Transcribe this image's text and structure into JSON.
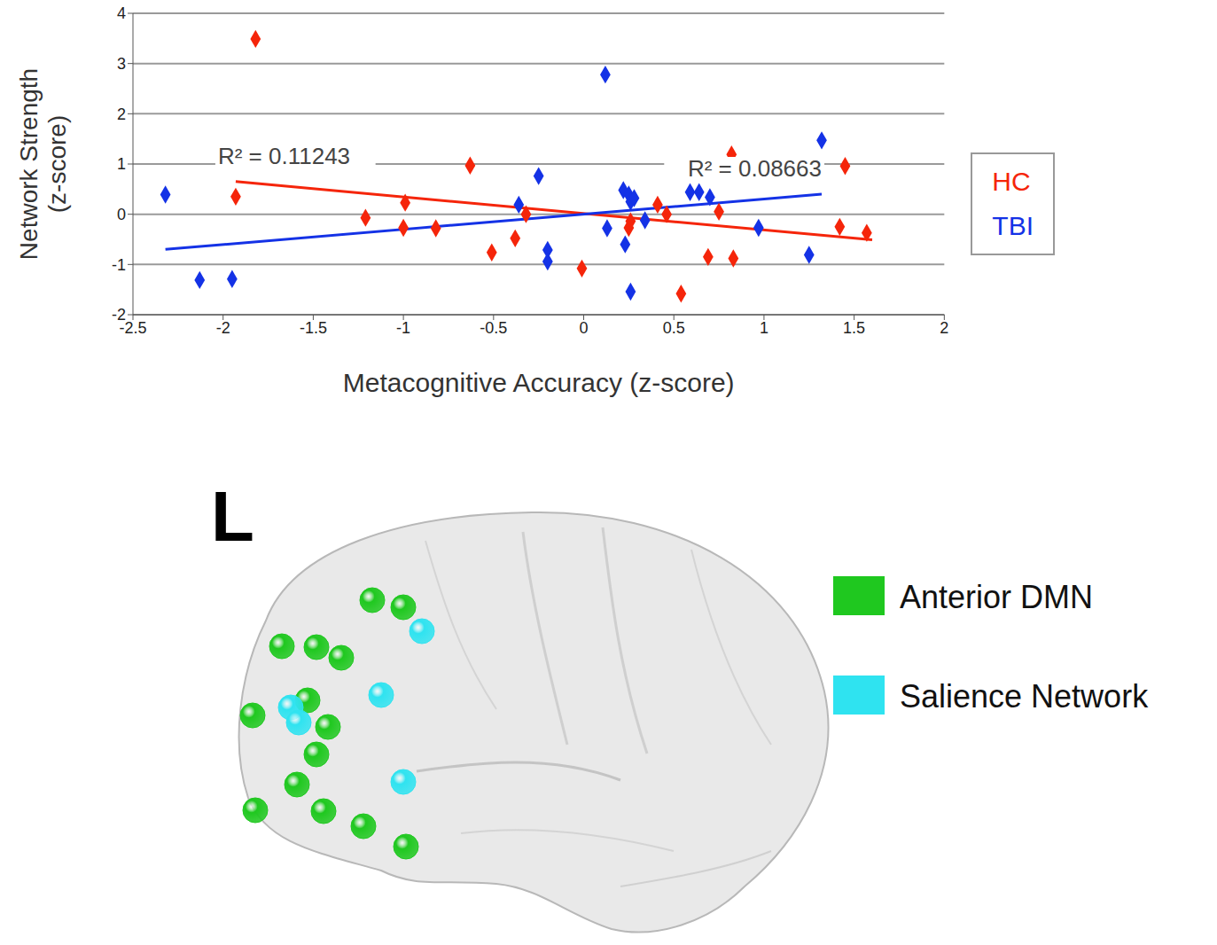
{
  "chart_data": {
    "type": "scatter",
    "xlabel": "Metacognitive Accuracy (z-score)",
    "ylabel": "Network Strength (z-score)",
    "xlim": [
      -2.5,
      2
    ],
    "xticks": [
      -2.5,
      -2,
      -1.5,
      -1,
      -0.5,
      0,
      0.5,
      1,
      1.5,
      2
    ],
    "ylim": [
      -2,
      4
    ],
    "yticks": [
      -2,
      -1,
      0,
      1,
      2,
      3,
      4
    ],
    "grid": "y",
    "legend": "right",
    "series": [
      {
        "name": "HC",
        "color": "#f5250a",
        "marker": "diamond",
        "x": [
          -1.82,
          -1.93,
          -1.21,
          -0.99,
          -1.0,
          -0.82,
          -0.63,
          -0.51,
          -0.38,
          -0.32,
          -0.01,
          0.25,
          0.26,
          0.41,
          0.46,
          0.54,
          0.69,
          0.75,
          0.82,
          0.83,
          1.45,
          1.42,
          1.57
        ],
        "y": [
          3.49,
          0.35,
          -0.07,
          0.23,
          -0.27,
          -0.28,
          0.97,
          -0.76,
          -0.48,
          0.0,
          -1.08,
          -0.27,
          -0.14,
          0.19,
          0.0,
          -1.58,
          -0.85,
          0.05,
          1.19,
          -0.88,
          0.96,
          -0.25,
          -0.37
        ],
        "trendline": {
          "x": [
            -1.93,
            1.6
          ],
          "y": [
            0.65,
            -0.51
          ]
        },
        "annotation": "R² = 0.11243"
      },
      {
        "name": "TBI",
        "color": "#1432e6",
        "marker": "diamond",
        "x": [
          -2.32,
          -2.13,
          -1.95,
          -0.36,
          -0.25,
          -0.2,
          -0.2,
          0.12,
          0.13,
          0.22,
          0.25,
          0.26,
          0.28,
          0.23,
          0.26,
          0.34,
          0.59,
          0.64,
          0.7,
          0.97,
          1.25,
          1.32
        ],
        "y": [
          0.39,
          -1.31,
          -1.29,
          0.19,
          0.76,
          -0.71,
          -0.94,
          2.78,
          -0.28,
          0.48,
          0.39,
          0.25,
          0.32,
          -0.6,
          -1.54,
          -0.12,
          0.44,
          0.44,
          0.34,
          -0.27,
          -0.81,
          1.47
        ],
        "trendline": {
          "x": [
            -2.32,
            1.32
          ],
          "y": [
            -0.7,
            0.4
          ]
        },
        "annotation": "R² = 0.08663"
      }
    ]
  },
  "brain_panel": {
    "hemisphere_label": "L",
    "networks": [
      {
        "name": "Anterior DMN",
        "color": "#1fc81f"
      },
      {
        "name": "Salience Network",
        "color": "#2fe3f0"
      }
    ]
  }
}
